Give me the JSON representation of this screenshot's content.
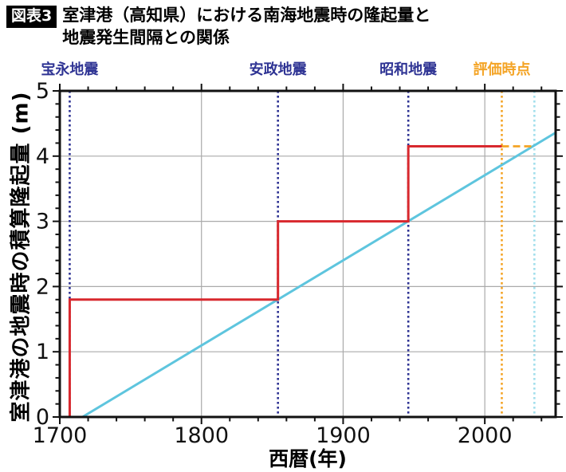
{
  "header": {
    "badge": "図表3",
    "title_line1": "室津港（高知県）における南海地震時の隆起量と",
    "title_line2": "地震発生間隔との関係"
  },
  "chart_data": {
    "type": "line",
    "xlabel": "西暦(年)",
    "ylabel": "室津港の地震時の積算隆起量 (m)",
    "xlim": [
      1700,
      2050
    ],
    "ylim": [
      0,
      5
    ],
    "x_major_ticks": [
      1700,
      1800,
      1900,
      2000
    ],
    "x_minor_step": 20,
    "y_major_ticks": [
      0,
      1,
      2,
      3,
      4,
      5
    ],
    "y_minor_step": 0.2,
    "grid": true,
    "grid_x": [
      1800,
      1900,
      2000
    ],
    "grid_y": [
      1,
      2,
      3,
      4
    ],
    "events": [
      {
        "label": "宝永地震",
        "year": 1707,
        "cumulative_uplift_m": 1.8,
        "color": "#2f3494"
      },
      {
        "label": "安政地震",
        "year": 1854,
        "cumulative_uplift_m": 3.0,
        "color": "#2f3494"
      },
      {
        "label": "昭和地震",
        "year": 1946,
        "cumulative_uplift_m": 4.15,
        "color": "#2f3494"
      },
      {
        "label": "評価時点",
        "year": 2012,
        "color": "#f4a426"
      }
    ],
    "projection": {
      "year": 2035,
      "uplift_m": 4.15,
      "color": "#a2dfec"
    },
    "series": [
      {
        "id": "trend-line",
        "style": "solid",
        "color": "#5ec5de",
        "points": [
          [
            1716,
            0
          ],
          [
            2050,
            4.36
          ]
        ]
      },
      {
        "id": "cumulative-uplift-step",
        "style": "step",
        "color": "#d8282e",
        "points": [
          [
            1707,
            0
          ],
          [
            1707,
            1.8
          ],
          [
            1854,
            1.8
          ],
          [
            1854,
            3.0
          ],
          [
            1946,
            3.0
          ],
          [
            1946,
            4.15
          ],
          [
            2012,
            4.15
          ]
        ]
      },
      {
        "id": "extrapolation-dashed",
        "style": "dashed",
        "color": "#f4a426",
        "points": [
          [
            2012,
            4.15
          ],
          [
            2035,
            4.15
          ]
        ]
      }
    ],
    "colors": {
      "axis": "#111111",
      "grid": "#aaaaaa",
      "tick_label": "#111111"
    }
  }
}
